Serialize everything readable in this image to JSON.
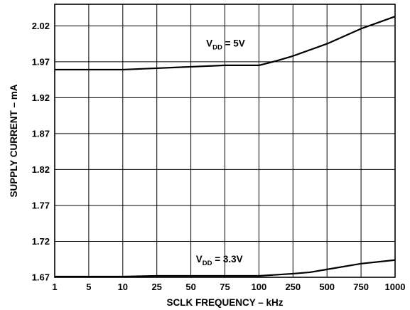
{
  "chart_data": {
    "type": "line",
    "title": "",
    "xlabel": "SCLK FREQUENCY – kHz",
    "ylabel": "SUPPLY CURRENT – mA",
    "categories": [
      "1",
      "5",
      "10",
      "25",
      "50",
      "75",
      "100",
      "250",
      "500",
      "750",
      "1000"
    ],
    "y_ticks": [
      "1.67",
      "1.72",
      "1.77",
      "1.82",
      "1.87",
      "1.92",
      "1.97",
      "2.02"
    ],
    "ylim": [
      1.67,
      2.05
    ],
    "grid": true,
    "series": [
      {
        "name": "VDD = 5V",
        "label_main": "V",
        "label_sub": "DD",
        "label_rest": " = 5V",
        "x": [
          0,
          1,
          2,
          3,
          4,
          5,
          6,
          6.5,
          7,
          8,
          9,
          10
        ],
        "y": [
          1.959,
          1.959,
          1.959,
          1.961,
          1.963,
          1.965,
          1.965,
          1.971,
          1.978,
          1.995,
          2.016,
          2.033
        ]
      },
      {
        "name": "VDD = 3.3V",
        "label_main": "V",
        "label_sub": "DD",
        "label_rest": " = 3.3V",
        "x": [
          0,
          1,
          2,
          3,
          4,
          5,
          6,
          7,
          7.5,
          8,
          9,
          10
        ],
        "y": [
          1.671,
          1.671,
          1.671,
          1.672,
          1.672,
          1.672,
          1.672,
          1.675,
          1.677,
          1.681,
          1.689,
          1.694
        ]
      }
    ]
  }
}
